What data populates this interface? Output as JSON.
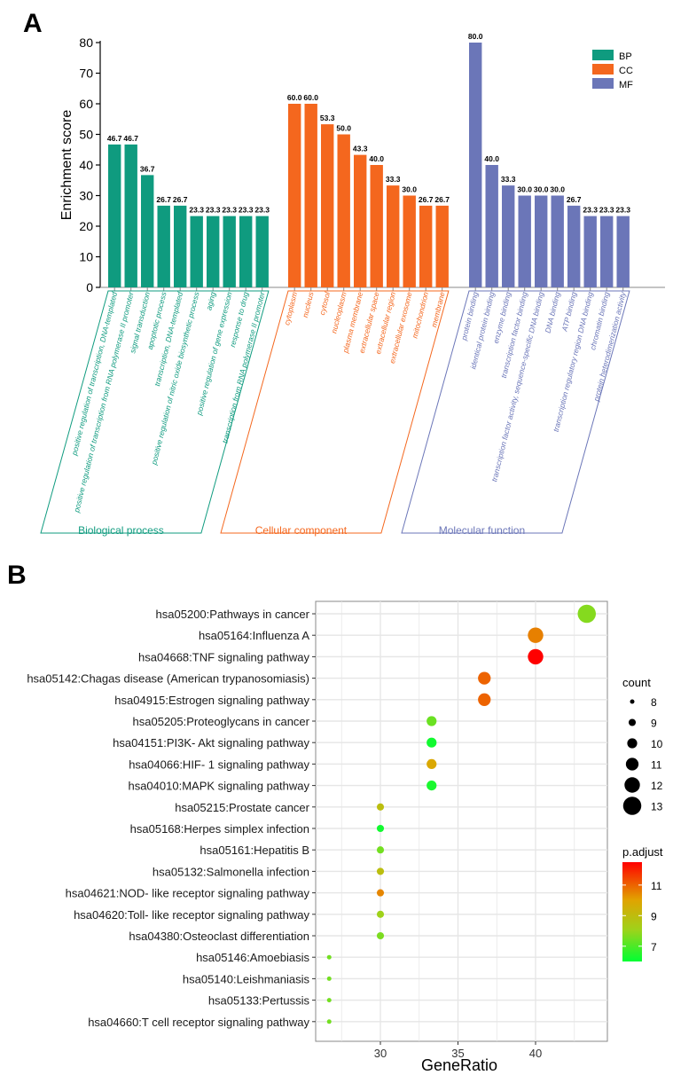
{
  "panels": {
    "a_letter": "A",
    "b_letter": "B"
  },
  "colors": {
    "BP": "#0f9b7f",
    "CC": "#f4671e",
    "MF": "#6b76b8",
    "padj_high": "#ff0000",
    "padj_mid": "#e1a300",
    "padj_midlow": "#9fd21a",
    "padj_low": "#00ff33",
    "grid": "#e6e6e6",
    "panel_bg": "#ffffff",
    "panel_border": "#888888"
  },
  "chart_data": [
    {
      "type": "bar",
      "panel": "A",
      "ylabel": "Enrichment score",
      "ylim": [
        0,
        80
      ],
      "yticks": [
        0,
        10,
        20,
        30,
        40,
        50,
        60,
        70,
        80
      ],
      "legend": {
        "placement": "top-right",
        "entries": [
          {
            "key": "BP",
            "label": "BP"
          },
          {
            "key": "CC",
            "label": "CC"
          },
          {
            "key": "MF",
            "label": "MF"
          }
        ]
      },
      "groups": [
        {
          "key": "BP",
          "name": "Biological process",
          "categories": [
            "positive regulation of transcription, DNA-templated",
            "positive regulation of transcription from RNA polymerase II promoter",
            "signal transduction",
            "apoptotic process",
            "transcription, DNA-templated",
            "positive regulation of nitric oxide biosynthetic process",
            "aging",
            "positive regulation of gene expression",
            "response to drug",
            "transcription from RNA polymerase II promoter"
          ],
          "values": [
            46.7,
            46.7,
            36.7,
            26.7,
            26.7,
            23.3,
            23.3,
            23.3,
            23.3,
            23.3
          ],
          "value_labels": [
            "46.7",
            "46.7",
            "36.7",
            "26.7",
            "26.7",
            "23.3",
            "23.3",
            "23.3",
            "23.3",
            "23.3"
          ]
        },
        {
          "key": "CC",
          "name": "Cellular component",
          "categories": [
            "cytoplasm",
            "nucleus",
            "cytosol",
            "nucleoplasm",
            "plasma membrane",
            "extracellular space",
            "extracellular region",
            "extracellular exosome",
            "mitochondrion",
            "membrane"
          ],
          "values": [
            60.0,
            60.0,
            53.3,
            50.0,
            43.3,
            40.0,
            33.3,
            30.0,
            26.7,
            26.7
          ],
          "value_labels": [
            "60.0",
            "60.0",
            "53.3",
            "50.0",
            "43.3",
            "40.0",
            "33.3",
            "30.0",
            "26.7",
            "26.7"
          ]
        },
        {
          "key": "MF",
          "name": "Molecular function",
          "categories": [
            "protein binding",
            "identical protein binding",
            "enzyme binding",
            "transcription factor binding",
            "transcription factor activity, sequence-specific DNA binding",
            "DNA binding",
            "ATP binding",
            "transcription regulatory region DNA binding",
            "chromatin binding",
            "protein heterodimerization activity"
          ],
          "values": [
            80.0,
            40.0,
            33.3,
            30.0,
            30.0,
            30.0,
            26.7,
            23.3,
            23.3,
            23.3
          ],
          "value_labels": [
            "80.0",
            "40.0",
            "33.3",
            "30.0",
            "30.0",
            "30.0",
            "26.7",
            "23.3",
            "23.3",
            "23.3"
          ]
        }
      ]
    },
    {
      "type": "scatter",
      "panel": "B",
      "xlabel": "GeneRatio",
      "xlim": [
        26.3,
        44.2
      ],
      "xticks": [
        30,
        35,
        40
      ],
      "grid": true,
      "size_legend": {
        "title": "count",
        "values": [
          8,
          9,
          10,
          11,
          12,
          13
        ]
      },
      "color_legend": {
        "title": "p.adjust",
        "ticks": [
          11,
          9,
          7
        ],
        "range": [
          6,
          12.5
        ]
      },
      "points": [
        {
          "label": "hsa05200:Pathways in cancer",
          "x": 43.3,
          "count": 13,
          "padj": 7.5
        },
        {
          "label": "hsa05164:Influenza A",
          "x": 40.0,
          "count": 12,
          "padj": 10.3
        },
        {
          "label": "hsa04668:TNF signaling pathway",
          "x": 40.0,
          "count": 12,
          "padj": 12.5
        },
        {
          "label": "hsa05142:Chagas disease (American trypanosomiasis)",
          "x": 36.7,
          "count": 11,
          "padj": 10.8
        },
        {
          "label": "hsa04915:Estrogen signaling pathway",
          "x": 36.7,
          "count": 11,
          "padj": 10.8
        },
        {
          "label": "hsa05205:Proteoglycans in cancer",
          "x": 33.3,
          "count": 10,
          "padj": 7.2
        },
        {
          "label": "hsa04151:PI3K- Akt signaling pathway",
          "x": 33.3,
          "count": 10,
          "padj": 6.2
        },
        {
          "label": "hsa04066:HIF- 1 signaling pathway",
          "x": 33.3,
          "count": 10,
          "padj": 9.5
        },
        {
          "label": "hsa04010:MAPK signaling pathway",
          "x": 33.3,
          "count": 10,
          "padj": 6.3
        },
        {
          "label": "hsa05215:Prostate cancer",
          "x": 30.0,
          "count": 9,
          "padj": 8.6
        },
        {
          "label": "hsa05168:Herpes simplex infection",
          "x": 30.0,
          "count": 9,
          "padj": 6.2
        },
        {
          "label": "hsa05161:Hepatitis B",
          "x": 30.0,
          "count": 9,
          "padj": 7.3
        },
        {
          "label": "hsa05132:Salmonella infection",
          "x": 30.0,
          "count": 9,
          "padj": 8.6
        },
        {
          "label": "hsa04621:NOD- like receptor signaling pathway",
          "x": 30.0,
          "count": 9,
          "padj": 10.2
        },
        {
          "label": "hsa04620:Toll- like receptor signaling pathway",
          "x": 30.0,
          "count": 9,
          "padj": 7.8
        },
        {
          "label": "hsa04380:Osteoclast differentiation",
          "x": 30.0,
          "count": 9,
          "padj": 7.4
        },
        {
          "label": "hsa05146:Amoebiasis",
          "x": 26.7,
          "count": 8,
          "padj": 7.3
        },
        {
          "label": "hsa05140:Leishmaniasis",
          "x": 26.7,
          "count": 8,
          "padj": 7.3
        },
        {
          "label": "hsa05133:Pertussis",
          "x": 26.7,
          "count": 8,
          "padj": 7.3
        },
        {
          "label": "hsa04660:T cell receptor signaling pathway",
          "x": 26.7,
          "count": 8,
          "padj": 7.3
        }
      ]
    }
  ]
}
